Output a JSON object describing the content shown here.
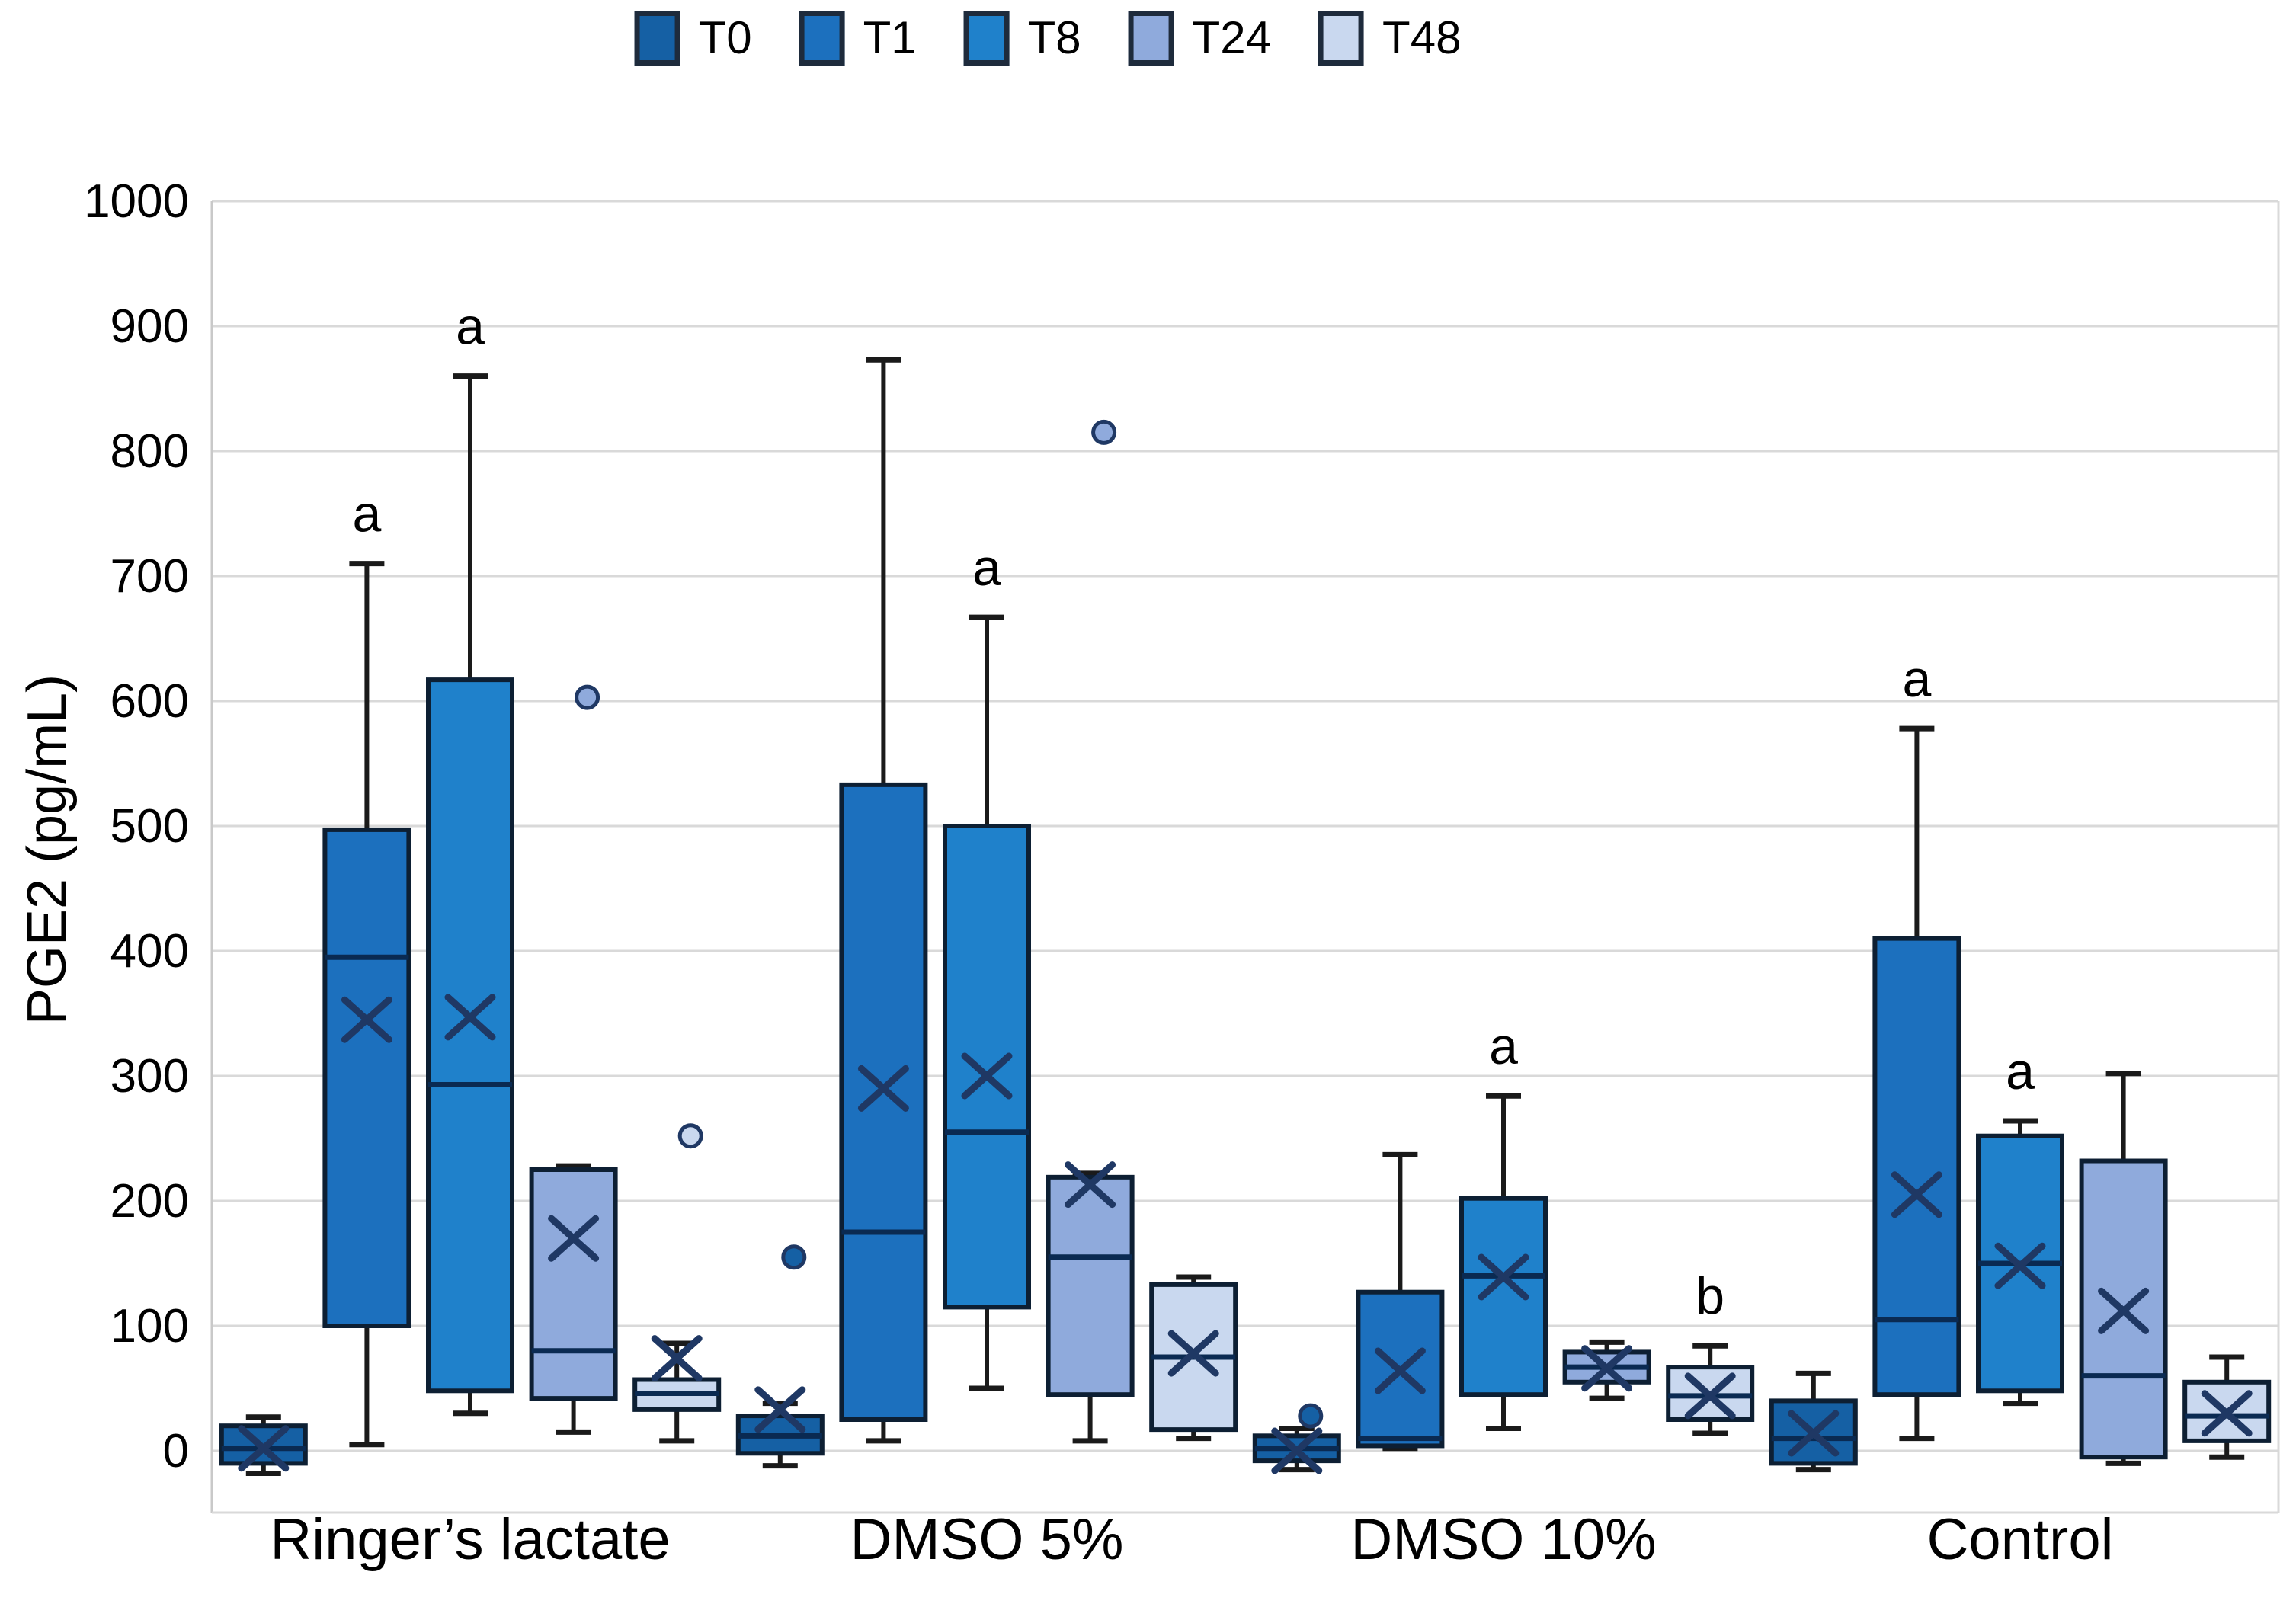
{
  "figure": {
    "y_axis_title": "PGE2 (pg/mL)"
  },
  "legend": {
    "position": "top-center",
    "items": [
      {
        "label": "T0",
        "color": "#1560A4"
      },
      {
        "label": "T1",
        "color": "#1C70BE"
      },
      {
        "label": "T8",
        "color": "#1F81CB"
      },
      {
        "label": "T24",
        "color": "#8FAADC"
      },
      {
        "label": "T48",
        "color": "#C9D8EF"
      }
    ]
  },
  "style": {
    "grid_color": "#D9D9D9",
    "axis_line_color": "#C9C9C9",
    "box_border_color": "#0D1F33",
    "median_color": "#0A2A52",
    "mean_marker_color": "#1F3864",
    "whisker_color": "#1A1A1A",
    "outlier_stroke_color": "#1F3864",
    "text_color": "#000000"
  },
  "chart_data": {
    "type": "boxplot",
    "title": "",
    "xlabel": "",
    "ylabel": "PGE2 (pg/mL)",
    "ylim": [
      -50,
      1000
    ],
    "y_ticks": [
      0,
      100,
      200,
      300,
      400,
      500,
      600,
      700,
      800,
      900,
      1000
    ],
    "grid": true,
    "legend_position": "top",
    "mean_marker": "x",
    "categories": [
      "Ringer’s lactate",
      "DMSO 5%",
      "DMSO 10%",
      "Control"
    ],
    "series": [
      {
        "name": "T0",
        "color": "#1560A4",
        "boxes": [
          {
            "whisker_low": -18,
            "q1": -10,
            "median": 2,
            "q3": 20,
            "whisker_high": 27,
            "mean": 2,
            "outliers": [],
            "annotation": null
          },
          {
            "whisker_low": -12,
            "q1": -2,
            "median": 12,
            "q3": 28,
            "whisker_high": 38,
            "mean": 33,
            "outliers": [
              155
            ],
            "annotation": null
          },
          {
            "whisker_low": -15,
            "q1": -8,
            "median": 2,
            "q3": 12,
            "whisker_high": 18,
            "mean": 0,
            "outliers": [
              28
            ],
            "annotation": null
          },
          {
            "whisker_low": -15,
            "q1": -10,
            "median": 10,
            "q3": 40,
            "whisker_high": 62,
            "mean": 14,
            "outliers": [],
            "annotation": null
          }
        ]
      },
      {
        "name": "T1",
        "color": "#1C70BE",
        "boxes": [
          {
            "whisker_low": 5,
            "q1": 100,
            "median": 395,
            "q3": 497,
            "whisker_high": 710,
            "mean": 345,
            "outliers": [],
            "annotation": "a"
          },
          {
            "whisker_low": 8,
            "q1": 25,
            "median": 175,
            "q3": 533,
            "whisker_high": 873,
            "mean": 290,
            "outliers": [],
            "annotation": null
          },
          {
            "whisker_low": 2,
            "q1": 4,
            "median": 10,
            "q3": 127,
            "whisker_high": 237,
            "mean": 64,
            "outliers": [],
            "annotation": null
          },
          {
            "whisker_low": 10,
            "q1": 45,
            "median": 105,
            "q3": 410,
            "whisker_high": 578,
            "mean": 205,
            "outliers": [],
            "annotation": "a"
          }
        ]
      },
      {
        "name": "T8",
        "color": "#1F81CB",
        "boxes": [
          {
            "whisker_low": 30,
            "q1": 48,
            "median": 293,
            "q3": 617,
            "whisker_high": 860,
            "mean": 347,
            "outliers": [],
            "annotation": "a"
          },
          {
            "whisker_low": 50,
            "q1": 115,
            "median": 255,
            "q3": 500,
            "whisker_high": 667,
            "mean": 300,
            "outliers": [],
            "annotation": "a"
          },
          {
            "whisker_low": 18,
            "q1": 45,
            "median": 140,
            "q3": 202,
            "whisker_high": 284,
            "mean": 139,
            "outliers": [],
            "annotation": "a"
          },
          {
            "whisker_low": 38,
            "q1": 48,
            "median": 150,
            "q3": 252,
            "whisker_high": 264,
            "mean": 148,
            "outliers": [],
            "annotation": "a"
          }
        ]
      },
      {
        "name": "T24",
        "color": "#8FAADC",
        "boxes": [
          {
            "whisker_low": 15,
            "q1": 42,
            "median": 80,
            "q3": 225,
            "whisker_high": 228,
            "mean": 170,
            "outliers": [
              603
            ],
            "annotation": null
          },
          {
            "whisker_low": 8,
            "q1": 45,
            "median": 155,
            "q3": 219,
            "whisker_high": 222,
            "mean": 213,
            "outliers": [
              815
            ],
            "annotation": null
          },
          {
            "whisker_low": 42,
            "q1": 55,
            "median": 67,
            "q3": 79,
            "whisker_high": 87,
            "mean": 66,
            "outliers": [],
            "annotation": null
          },
          {
            "whisker_low": -10,
            "q1": -5,
            "median": 60,
            "q3": 232,
            "whisker_high": 302,
            "mean": 112,
            "outliers": [],
            "annotation": null
          }
        ]
      },
      {
        "name": "T48",
        "color": "#C9D8EF",
        "boxes": [
          {
            "whisker_low": 8,
            "q1": 33,
            "median": 46,
            "q3": 57,
            "whisker_high": 86,
            "mean": 74,
            "outliers": [
              252
            ],
            "annotation": null
          },
          {
            "whisker_low": 10,
            "q1": 17,
            "median": 75,
            "q3": 133,
            "whisker_high": 139,
            "mean": 78,
            "outliers": [],
            "annotation": null
          },
          {
            "whisker_low": 14,
            "q1": 25,
            "median": 44,
            "q3": 67,
            "whisker_high": 84,
            "mean": 44,
            "outliers": [],
            "annotation": "b"
          },
          {
            "whisker_low": -5,
            "q1": 8,
            "median": 28,
            "q3": 55,
            "whisker_high": 75,
            "mean": 30,
            "outliers": [],
            "annotation": null
          }
        ]
      }
    ]
  }
}
